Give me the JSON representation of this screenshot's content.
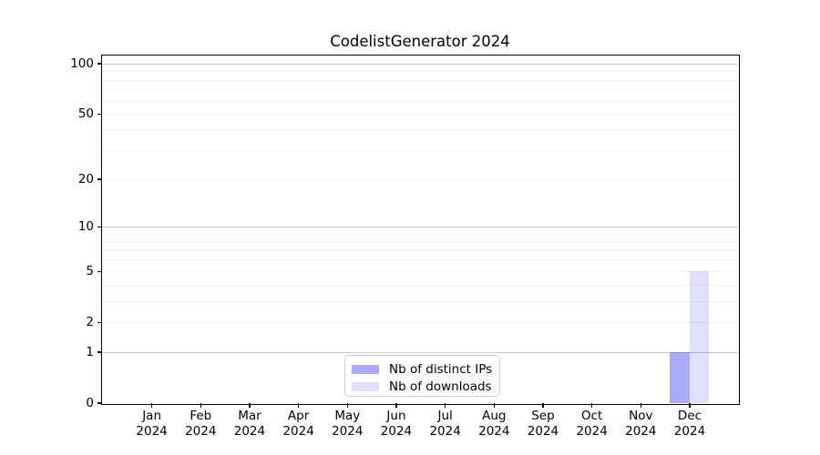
{
  "chart_data": {
    "type": "bar",
    "title": "CodelistGenerator 2024",
    "categories": [
      "Jan 2024",
      "Feb 2024",
      "Mar 2024",
      "Apr 2024",
      "May 2024",
      "Jun 2024",
      "Jul 2024",
      "Aug 2024",
      "Sep 2024",
      "Oct 2024",
      "Nov 2024",
      "Dec 2024"
    ],
    "series": [
      {
        "name": "Nb of distinct IPs",
        "values": [
          0,
          0,
          0,
          0,
          0,
          0,
          0,
          0,
          0,
          0,
          0,
          1
        ],
        "color": "#0000ee",
        "alpha": 0.33,
        "apparent_hex": "#aaaaf7"
      },
      {
        "name": "Nb of downloads",
        "values": [
          0,
          0,
          0,
          0,
          0,
          0,
          0,
          0,
          0,
          0,
          0,
          5
        ],
        "color": "#0000ee",
        "alpha": 0.12,
        "apparent_hex": "#dcdcfa"
      }
    ],
    "xlabel": "",
    "ylabel": "",
    "y_scale": "log1p",
    "ylim": [
      0,
      111
    ],
    "y_ticks": [
      0,
      1,
      2,
      5,
      10,
      20,
      50,
      100
    ],
    "y_major_gridlines": [
      1,
      10,
      100
    ],
    "y_minor_gridlines": [
      2,
      3,
      4,
      5,
      6,
      7,
      8,
      9,
      20,
      30,
      40,
      50,
      60,
      70,
      80,
      90
    ],
    "grid": true,
    "legend_position": "lower center"
  },
  "colors": {
    "axis": "#000000",
    "text": "#000000",
    "grid_major": "#c9c9c9",
    "grid_minor": "#f0f0f0",
    "legend_border": "#cccccc",
    "legend_bg": "#ffffff"
  }
}
